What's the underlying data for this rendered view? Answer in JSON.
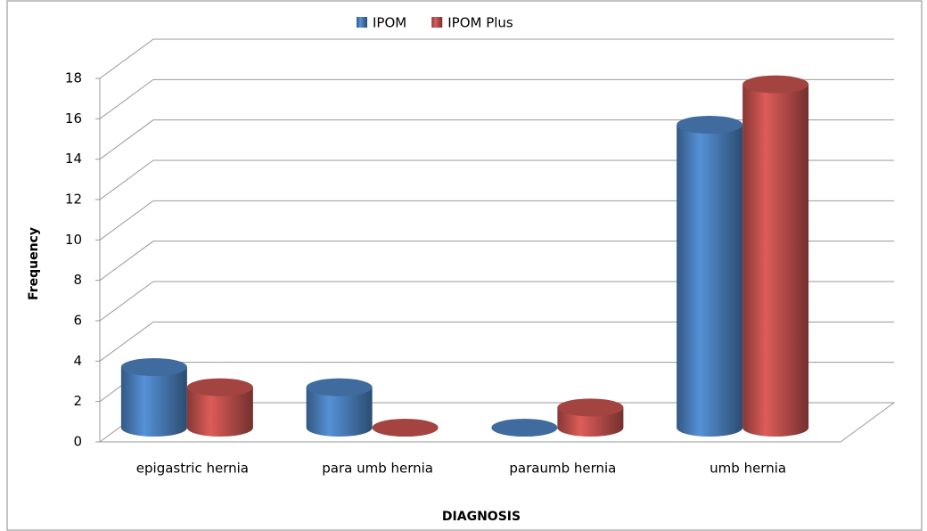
{
  "chart_data": {
    "type": "bar3d",
    "x_label": "DIAGNOSIS",
    "y_label": "Frequency",
    "categories": [
      "epigastric hernia",
      "para umb hernia",
      "paraumb hernia",
      "umb hernia"
    ],
    "series": [
      {
        "name": "IPOM",
        "color": "#4a7ebb",
        "values": [
          3,
          2,
          0,
          15
        ]
      },
      {
        "name": "IPOM Plus",
        "color": "#c0504d",
        "values": [
          2,
          0,
          1,
          17
        ]
      }
    ],
    "ylim": [
      0,
      18
    ],
    "yticks": [
      0,
      2,
      4,
      6,
      8,
      10,
      12,
      14,
      16,
      18
    ],
    "grid": true,
    "legend": "top"
  }
}
